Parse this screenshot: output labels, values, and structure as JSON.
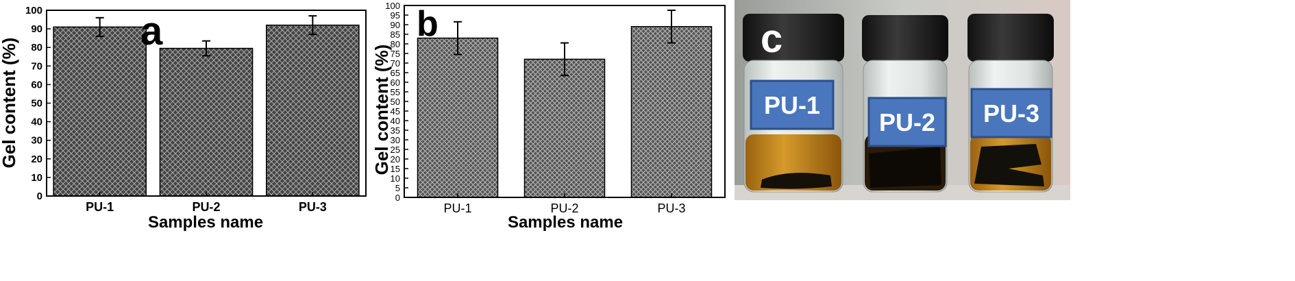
{
  "chart_data": [
    {
      "type": "bar",
      "panel_label": "a",
      "categories": [
        "PU-1",
        "PU-2",
        "PU-3"
      ],
      "values": [
        91,
        79.5,
        92
      ],
      "errors": [
        5,
        4,
        5
      ],
      "xlabel": "Samples name",
      "ylabel": "Gel content (%)",
      "ylim": [
        0,
        100
      ],
      "yticks": [
        "0",
        "10",
        "20",
        "30",
        "40",
        "50",
        "60",
        "70",
        "80",
        "90",
        "100"
      ],
      "bar_pattern": "crosshatch"
    },
    {
      "type": "bar",
      "panel_label": "b",
      "categories": [
        "PU-1",
        "PU-2",
        "PU-3"
      ],
      "values": [
        83,
        72,
        89
      ],
      "errors": [
        8.5,
        8.5,
        8.5
      ],
      "xlabel": "Samples name",
      "ylabel": "Gel content (%)",
      "ylim": [
        0,
        100
      ],
      "yticks": [
        "0",
        "5",
        "10",
        "15",
        "20",
        "25",
        "30",
        "35",
        "40",
        "45",
        "50",
        "55",
        "60",
        "65",
        "70",
        "75",
        "80",
        "85",
        "90",
        "95",
        "100"
      ],
      "bar_pattern": "crosshatch"
    }
  ],
  "photo": {
    "panel_label": "c",
    "vials": [
      {
        "label": "PU-1"
      },
      {
        "label": "PU-2"
      },
      {
        "label": "PU-3"
      }
    ],
    "label_box_color": "#4a76bd",
    "liquid_color": "#c98a1a"
  }
}
